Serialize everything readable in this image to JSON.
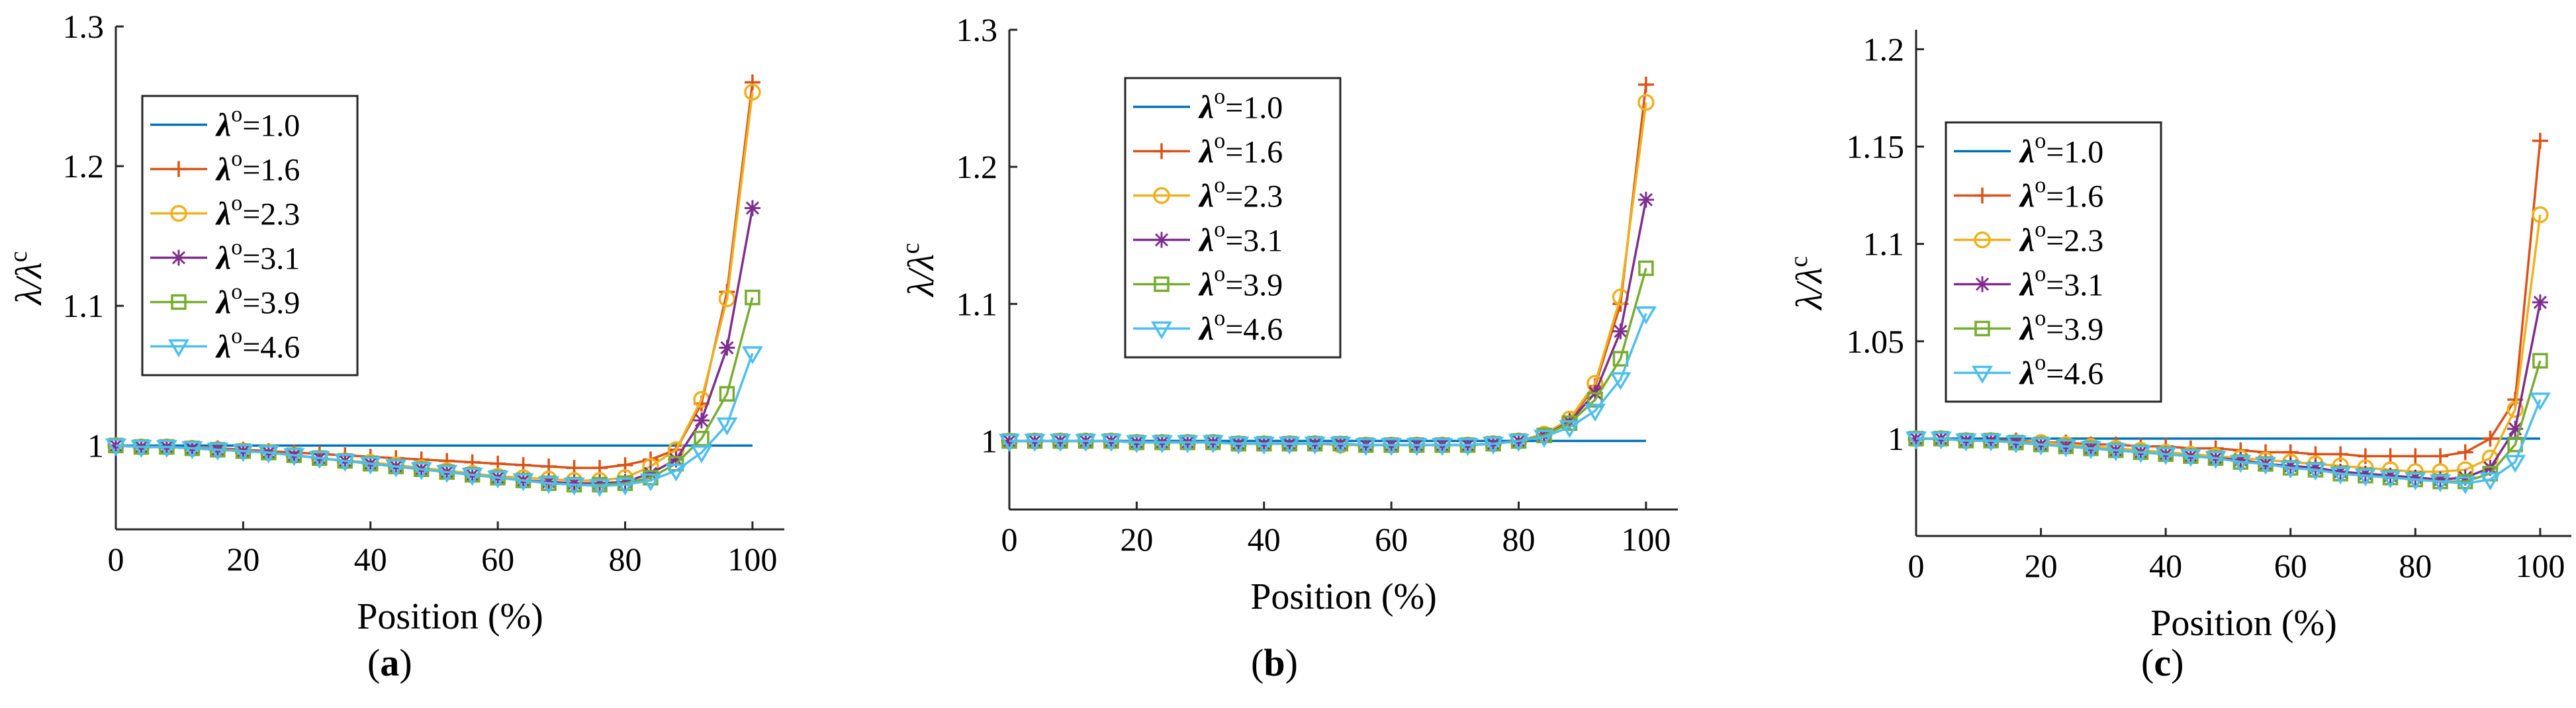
{
  "chart_data": [
    {
      "id": "a",
      "panel_label": "a",
      "type": "line",
      "xlabel": "Position (%)",
      "ylabel": "λ/λc",
      "ylabel_base": "λ/λ",
      "ylabel_sup": "c",
      "xlim": [
        0,
        105
      ],
      "ylim": [
        0.94,
        1.3
      ],
      "xticks": [
        0,
        20,
        40,
        60,
        80,
        100
      ],
      "xtick_labels": [
        "0",
        "20",
        "40",
        "60",
        "80",
        "100"
      ],
      "yticks": [
        1.0,
        1.1,
        1.2,
        1.3
      ],
      "ytick_labels": [
        "1",
        "1.1",
        "1.2",
        "1.3"
      ],
      "grid": false,
      "legend_placement": "upper-left",
      "reference_line": {
        "y": 1.0,
        "x_end": 100
      },
      "x": [
        0,
        4,
        8,
        12,
        16,
        20,
        24,
        28,
        32,
        36,
        40,
        44,
        48,
        52,
        56,
        60,
        64,
        68,
        72,
        76,
        80,
        84,
        88,
        92,
        96,
        100
      ],
      "series": [
        {
          "name": "λo=1.0",
          "label_base": "λ",
          "label_sup": "o",
          "label_rest": "=1.0",
          "color": "#0072BD",
          "marker": "none",
          "values": [
            1,
            1,
            1,
            1,
            1,
            1,
            1,
            1,
            1,
            1,
            1,
            1,
            1,
            1,
            1,
            1,
            1,
            1,
            1,
            1,
            1,
            1,
            1,
            1,
            1,
            1
          ]
        },
        {
          "name": "λo=1.6",
          "label_base": "λ",
          "label_sup": "o",
          "label_rest": "=1.6",
          "color": "#D95319",
          "marker": "plus",
          "values": [
            1.0,
            0.999,
            0.999,
            0.998,
            0.998,
            0.997,
            0.996,
            0.995,
            0.994,
            0.993,
            0.992,
            0.991,
            0.99,
            0.989,
            0.988,
            0.987,
            0.986,
            0.985,
            0.984,
            0.984,
            0.986,
            0.99,
            0.997,
            1.03,
            1.11,
            1.26
          ]
        },
        {
          "name": "λo=2.3",
          "label_base": "λ",
          "label_sup": "o",
          "label_rest": "=2.3",
          "color": "#EDB120",
          "marker": "circle",
          "values": [
            1.0,
            0.999,
            0.999,
            0.998,
            0.997,
            0.996,
            0.995,
            0.993,
            0.991,
            0.989,
            0.988,
            0.986,
            0.984,
            0.982,
            0.98,
            0.978,
            0.977,
            0.976,
            0.975,
            0.975,
            0.977,
            0.985,
            0.997,
            1.033,
            1.105,
            1.253
          ]
        },
        {
          "name": "λo=3.1",
          "label_base": "λ",
          "label_sup": "o",
          "label_rest": "=3.1",
          "color": "#7E2F8E",
          "marker": "star",
          "values": [
            1.0,
            0.999,
            0.999,
            0.998,
            0.997,
            0.996,
            0.995,
            0.993,
            0.991,
            0.989,
            0.987,
            0.985,
            0.983,
            0.981,
            0.979,
            0.977,
            0.975,
            0.974,
            0.973,
            0.973,
            0.974,
            0.98,
            0.99,
            1.018,
            1.07,
            1.17
          ]
        },
        {
          "name": "λo=3.9",
          "label_base": "λ",
          "label_sup": "o",
          "label_rest": "=3.9",
          "color": "#77AC30",
          "marker": "square",
          "values": [
            1.0,
            0.999,
            0.999,
            0.998,
            0.997,
            0.996,
            0.995,
            0.993,
            0.991,
            0.989,
            0.987,
            0.985,
            0.983,
            0.981,
            0.979,
            0.977,
            0.975,
            0.973,
            0.972,
            0.972,
            0.973,
            0.977,
            0.987,
            1.005,
            1.037,
            1.106
          ]
        },
        {
          "name": "λo=4.6",
          "label_base": "λ",
          "label_sup": "o",
          "label_rest": "=4.6",
          "color": "#4DBEEE",
          "marker": "triangle-down",
          "values": [
            1.0,
            0.999,
            0.999,
            0.998,
            0.997,
            0.996,
            0.995,
            0.993,
            0.991,
            0.989,
            0.987,
            0.985,
            0.983,
            0.981,
            0.979,
            0.977,
            0.975,
            0.973,
            0.972,
            0.971,
            0.972,
            0.975,
            0.982,
            0.995,
            1.015,
            1.066
          ]
        }
      ]
    },
    {
      "id": "b",
      "panel_label": "b",
      "type": "line",
      "xlabel": "Position (%)",
      "ylabel": "λ/λc",
      "ylabel_base": "λ/λ",
      "ylabel_sup": "c",
      "xlim": [
        0,
        105
      ],
      "ylim": [
        0.95,
        1.3
      ],
      "xticks": [
        0,
        20,
        40,
        60,
        80,
        100
      ],
      "xtick_labels": [
        "0",
        "20",
        "40",
        "60",
        "80",
        "100"
      ],
      "yticks": [
        1.0,
        1.1,
        1.2,
        1.3
      ],
      "ytick_labels": [
        "1",
        "1.1",
        "1.2",
        "1.3"
      ],
      "grid": false,
      "legend_placement": "upper-center",
      "reference_line": {
        "y": 1.0,
        "x_end": 100
      },
      "x": [
        0,
        4,
        8,
        12,
        16,
        20,
        24,
        28,
        32,
        36,
        40,
        44,
        48,
        52,
        56,
        60,
        64,
        68,
        72,
        76,
        80,
        84,
        88,
        92,
        96,
        100
      ],
      "series": [
        {
          "name": "λo=1.0",
          "label_base": "λ",
          "label_sup": "o",
          "label_rest": "=1.0",
          "color": "#0072BD",
          "marker": "none",
          "values": [
            1,
            1,
            1,
            1,
            1,
            1,
            1,
            1,
            1,
            1,
            1,
            1,
            1,
            1,
            1,
            1,
            1,
            1,
            1,
            1,
            1,
            1,
            1,
            1,
            1,
            1
          ]
        },
        {
          "name": "λo=1.6",
          "label_base": "λ",
          "label_sup": "o",
          "label_rest": "=1.6",
          "color": "#D95319",
          "marker": "plus",
          "values": [
            1.0,
            1.0,
            1.0,
            1.0,
            1.0,
            0.999,
            0.999,
            0.999,
            0.999,
            0.998,
            0.998,
            0.998,
            0.998,
            0.998,
            0.997,
            0.997,
            0.997,
            0.997,
            0.997,
            0.998,
            1.0,
            1.005,
            1.015,
            1.04,
            1.1,
            1.26
          ]
        },
        {
          "name": "λo=2.3",
          "label_base": "λ",
          "label_sup": "o",
          "label_rest": "=2.3",
          "color": "#EDB120",
          "marker": "circle",
          "values": [
            1.0,
            1.0,
            1.0,
            1.0,
            1.0,
            0.999,
            0.999,
            0.999,
            0.999,
            0.998,
            0.998,
            0.998,
            0.998,
            0.997,
            0.997,
            0.997,
            0.997,
            0.997,
            0.997,
            0.998,
            1.0,
            1.005,
            1.016,
            1.042,
            1.105,
            1.247
          ]
        },
        {
          "name": "λo=3.1",
          "label_base": "λ",
          "label_sup": "o",
          "label_rest": "=3.1",
          "color": "#7E2F8E",
          "marker": "star",
          "values": [
            1.0,
            1.0,
            1.0,
            1.0,
            1.0,
            0.999,
            0.999,
            0.999,
            0.999,
            0.998,
            0.998,
            0.998,
            0.998,
            0.998,
            0.997,
            0.997,
            0.997,
            0.997,
            0.997,
            0.998,
            1.0,
            1.004,
            1.014,
            1.035,
            1.08,
            1.176
          ]
        },
        {
          "name": "λo=3.9",
          "label_base": "λ",
          "label_sup": "o",
          "label_rest": "=3.9",
          "color": "#77AC30",
          "marker": "square",
          "values": [
            1.0,
            1.0,
            1.0,
            1.0,
            1.0,
            0.999,
            0.999,
            0.999,
            0.999,
            0.998,
            0.998,
            0.998,
            0.998,
            0.998,
            0.997,
            0.997,
            0.997,
            0.997,
            0.997,
            0.998,
            1.0,
            1.004,
            1.013,
            1.03,
            1.06,
            1.126
          ]
        },
        {
          "name": "λo=4.6",
          "label_base": "λ",
          "label_sup": "o",
          "label_rest": "=4.6",
          "color": "#4DBEEE",
          "marker": "triangle-down",
          "values": [
            1.0,
            1.0,
            1.0,
            1.0,
            1.0,
            0.999,
            0.999,
            0.999,
            0.999,
            0.998,
            0.998,
            0.998,
            0.998,
            0.998,
            0.997,
            0.997,
            0.997,
            0.997,
            0.997,
            0.998,
            1.0,
            1.003,
            1.01,
            1.022,
            1.045,
            1.093
          ]
        }
      ]
    },
    {
      "id": "c",
      "panel_label": "c",
      "type": "line",
      "xlabel": "Position (%)",
      "ylabel": "λ/λc",
      "ylabel_base": "λ/λ",
      "ylabel_sup": "c",
      "xlim": [
        0,
        105
      ],
      "ylim": [
        0.95,
        1.21
      ],
      "xticks": [
        0,
        20,
        40,
        60,
        80,
        100
      ],
      "xtick_labels": [
        "0",
        "20",
        "40",
        "60",
        "80",
        "100"
      ],
      "yticks": [
        1.0,
        1.05,
        1.1,
        1.15,
        1.2
      ],
      "ytick_labels": [
        "1",
        "1.05",
        "1.1",
        "1.15",
        "1.2"
      ],
      "grid": false,
      "legend_placement": "upper-left",
      "reference_line": {
        "y": 1.0,
        "x_end": 100
      },
      "x": [
        0,
        4,
        8,
        12,
        16,
        20,
        24,
        28,
        32,
        36,
        40,
        44,
        48,
        52,
        56,
        60,
        64,
        68,
        72,
        76,
        80,
        84,
        88,
        92,
        96,
        100
      ],
      "series": [
        {
          "name": "λo=1.0",
          "label_base": "λ",
          "label_sup": "o",
          "label_rest": "=1.0",
          "color": "#0072BD",
          "marker": "none",
          "values": [
            1,
            1,
            1,
            1,
            1,
            1,
            1,
            1,
            1,
            1,
            1,
            1,
            1,
            1,
            1,
            1,
            1,
            1,
            1,
            1,
            1,
            1,
            1,
            1,
            1,
            1
          ]
        },
        {
          "name": "λo=1.6",
          "label_base": "λ",
          "label_sup": "o",
          "label_rest": "=1.6",
          "color": "#D95319",
          "marker": "plus",
          "values": [
            1.0,
            1.0,
            0.999,
            0.999,
            0.999,
            0.998,
            0.998,
            0.997,
            0.997,
            0.996,
            0.996,
            0.995,
            0.995,
            0.994,
            0.993,
            0.993,
            0.992,
            0.992,
            0.991,
            0.991,
            0.991,
            0.991,
            0.993,
            1.0,
            1.02,
            1.153
          ]
        },
        {
          "name": "λo=2.3",
          "label_base": "λ",
          "label_sup": "o",
          "label_rest": "=2.3",
          "color": "#EDB120",
          "marker": "circle",
          "values": [
            1.0,
            1.0,
            0.999,
            0.999,
            0.998,
            0.998,
            0.997,
            0.996,
            0.995,
            0.994,
            0.993,
            0.992,
            0.991,
            0.99,
            0.989,
            0.988,
            0.987,
            0.986,
            0.985,
            0.984,
            0.983,
            0.983,
            0.984,
            0.99,
            1.015,
            1.115
          ]
        },
        {
          "name": "λo=3.1",
          "label_base": "λ",
          "label_sup": "o",
          "label_rest": "=3.1",
          "color": "#7E2F8E",
          "marker": "star",
          "values": [
            1.0,
            1.0,
            0.999,
            0.999,
            0.998,
            0.997,
            0.996,
            0.995,
            0.994,
            0.993,
            0.992,
            0.991,
            0.99,
            0.989,
            0.987,
            0.986,
            0.985,
            0.983,
            0.982,
            0.981,
            0.98,
            0.979,
            0.98,
            0.985,
            1.005,
            1.07
          ]
        },
        {
          "name": "λo=3.9",
          "label_base": "λ",
          "label_sup": "o",
          "label_rest": "=3.9",
          "color": "#77AC30",
          "marker": "square",
          "values": [
            1.0,
            1.0,
            0.999,
            0.999,
            0.998,
            0.997,
            0.996,
            0.995,
            0.994,
            0.993,
            0.992,
            0.991,
            0.99,
            0.988,
            0.987,
            0.985,
            0.984,
            0.982,
            0.981,
            0.98,
            0.979,
            0.978,
            0.978,
            0.982,
            0.997,
            1.04
          ]
        },
        {
          "name": "λo=4.6",
          "label_base": "λ",
          "label_sup": "o",
          "label_rest": "=4.6",
          "color": "#4DBEEE",
          "marker": "triangle-down",
          "values": [
            1.0,
            1.0,
            0.999,
            0.999,
            0.998,
            0.997,
            0.996,
            0.995,
            0.994,
            0.993,
            0.992,
            0.991,
            0.99,
            0.988,
            0.987,
            0.985,
            0.984,
            0.982,
            0.981,
            0.98,
            0.979,
            0.978,
            0.977,
            0.979,
            0.988,
            1.02
          ]
        }
      ]
    }
  ]
}
